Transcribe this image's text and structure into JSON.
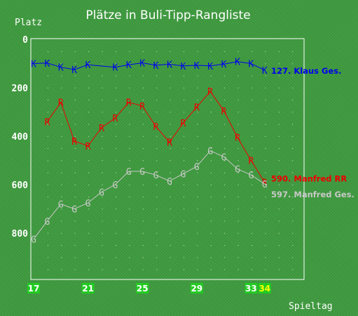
{
  "chart_data": {
    "type": "line",
    "title": "Plätze in Buli-Tipp-Rangliste",
    "ylabel": "Platz",
    "xlabel": "Spieltag",
    "ylim": [
      0,
      1000
    ],
    "y_inverted": true,
    "xlim": [
      17,
      34
    ],
    "x_ticks": [
      17,
      21,
      25,
      29,
      33,
      34
    ],
    "y_ticks": [
      0,
      200,
      400,
      600,
      800
    ],
    "grid": true,
    "series": [
      {
        "name": "Klaus Ges.",
        "marker": "K",
        "color": "#0000ee",
        "end_label": "127. Klaus Ges.",
        "points": [
          {
            "x": 17,
            "y": 100
          },
          {
            "x": 18,
            "y": 98
          },
          {
            "x": 19,
            "y": 115
          },
          {
            "x": 20,
            "y": 125
          },
          {
            "x": 21,
            "y": 105
          },
          {
            "x": 23,
            "y": 115
          },
          {
            "x": 24,
            "y": 105
          },
          {
            "x": 25,
            "y": 97
          },
          {
            "x": 26,
            "y": 107
          },
          {
            "x": 27,
            "y": 103
          },
          {
            "x": 28,
            "y": 110
          },
          {
            "x": 29,
            "y": 107
          },
          {
            "x": 30,
            "y": 110
          },
          {
            "x": 31,
            "y": 102
          },
          {
            "x": 32,
            "y": 92
          },
          {
            "x": 33,
            "y": 100
          },
          {
            "x": 34,
            "y": 127
          }
        ]
      },
      {
        "name": "Manfred RR",
        "marker": "R",
        "color": "#ee0000",
        "end_label": "590. Manfred RR",
        "points": [
          {
            "x": 18,
            "y": 340
          },
          {
            "x": 19,
            "y": 260
          },
          {
            "x": 20,
            "y": 420
          },
          {
            "x": 21,
            "y": 440
          },
          {
            "x": 22,
            "y": 365
          },
          {
            "x": 23,
            "y": 325
          },
          {
            "x": 24,
            "y": 260
          },
          {
            "x": 25,
            "y": 275
          },
          {
            "x": 26,
            "y": 360
          },
          {
            "x": 27,
            "y": 425
          },
          {
            "x": 28,
            "y": 345
          },
          {
            "x": 29,
            "y": 280
          },
          {
            "x": 30,
            "y": 215
          },
          {
            "x": 31,
            "y": 295
          },
          {
            "x": 32,
            "y": 405
          },
          {
            "x": 33,
            "y": 500
          },
          {
            "x": 34,
            "y": 590
          }
        ]
      },
      {
        "name": "Manfred Ges.",
        "marker": "G",
        "color": "#c8c8c8",
        "end_label": "597. Manfred Ges.",
        "points": [
          {
            "x": 17,
            "y": 825
          },
          {
            "x": 18,
            "y": 750
          },
          {
            "x": 19,
            "y": 680
          },
          {
            "x": 20,
            "y": 700
          },
          {
            "x": 21,
            "y": 675
          },
          {
            "x": 22,
            "y": 630
          },
          {
            "x": 23,
            "y": 600
          },
          {
            "x": 24,
            "y": 545
          },
          {
            "x": 25,
            "y": 545
          },
          {
            "x": 26,
            "y": 560
          },
          {
            "x": 27,
            "y": 585
          },
          {
            "x": 28,
            "y": 555
          },
          {
            "x": 29,
            "y": 525
          },
          {
            "x": 30,
            "y": 460
          },
          {
            "x": 31,
            "y": 485
          },
          {
            "x": 32,
            "y": 535
          },
          {
            "x": 33,
            "y": 560
          },
          {
            "x": 34,
            "y": 597
          }
        ]
      }
    ]
  },
  "colors": {
    "background": "#3e9a3e",
    "frame": "#ffffff",
    "grid_dots": "#cfe8cf",
    "tick_label_bg": "#22cc22",
    "tick_label_highlight": "#ffff00"
  }
}
